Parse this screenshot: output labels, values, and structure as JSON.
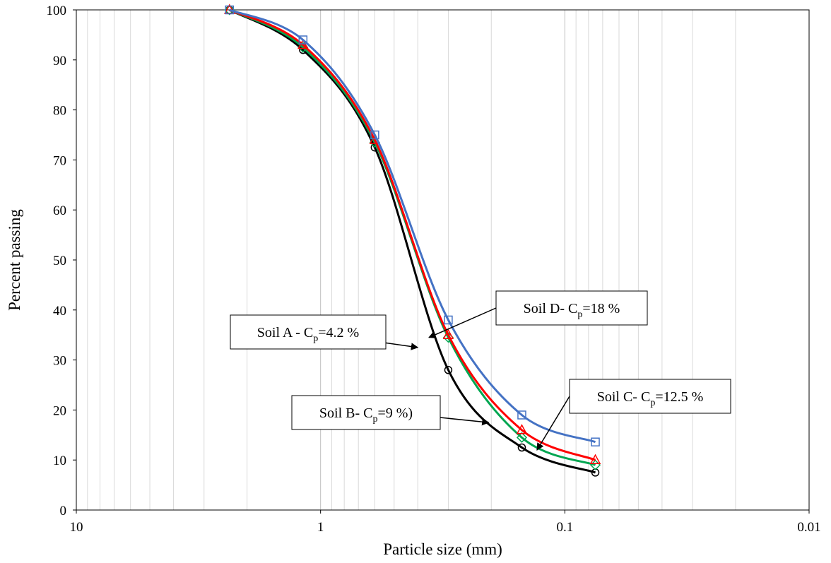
{
  "chart_data": {
    "type": "line",
    "xscale": "log",
    "xlim": [
      10,
      0.01
    ],
    "ylim": [
      0,
      100
    ],
    "xlabel": "Particle size (mm)",
    "ylabel": "Percent passing",
    "xticks": [
      10,
      1,
      0.1,
      0.01
    ],
    "xtick_labels": [
      "10",
      "1",
      "0.1",
      "0.01"
    ],
    "yticks": [
      0,
      10,
      20,
      30,
      40,
      50,
      60,
      70,
      80,
      90,
      100
    ],
    "grid": true,
    "legend": "none",
    "x": [
      2.36,
      1.18,
      0.6,
      0.3,
      0.15,
      0.075
    ],
    "series": [
      {
        "color": "#000000",
        "marker": "circle",
        "values": [
          100,
          92,
          72.5,
          28,
          12.5,
          7.5
        ]
      },
      {
        "color": "#00a651",
        "marker": "diamond",
        "values": [
          100,
          92.5,
          73.5,
          34.5,
          14.5,
          9
        ]
      },
      {
        "color": "#ff0000",
        "marker": "triangle",
        "values": [
          100,
          93,
          74,
          35,
          16,
          10
        ]
      },
      {
        "color": "#4472c4",
        "marker": "square",
        "values": [
          100,
          94,
          75,
          38,
          19,
          13.6
        ]
      }
    ],
    "annotations": [
      {
        "prefix": "Soil A - C",
        "sub": "p",
        "suffix": "=4.2 %",
        "arrow_to": [
          0.4,
          32.5
        ]
      },
      {
        "prefix": "Soil B- C",
        "sub": "p",
        "suffix": "=9 %)",
        "arrow_to": [
          0.205,
          17.5
        ]
      },
      {
        "prefix": "Soil C- C",
        "sub": "p",
        "suffix": "=12.5 %",
        "arrow_to": [
          0.13,
          12
        ]
      },
      {
        "prefix": "Soil D- C",
        "sub": "p",
        "suffix": "=18 %",
        "arrow_to": [
          0.36,
          34.5
        ]
      }
    ]
  }
}
